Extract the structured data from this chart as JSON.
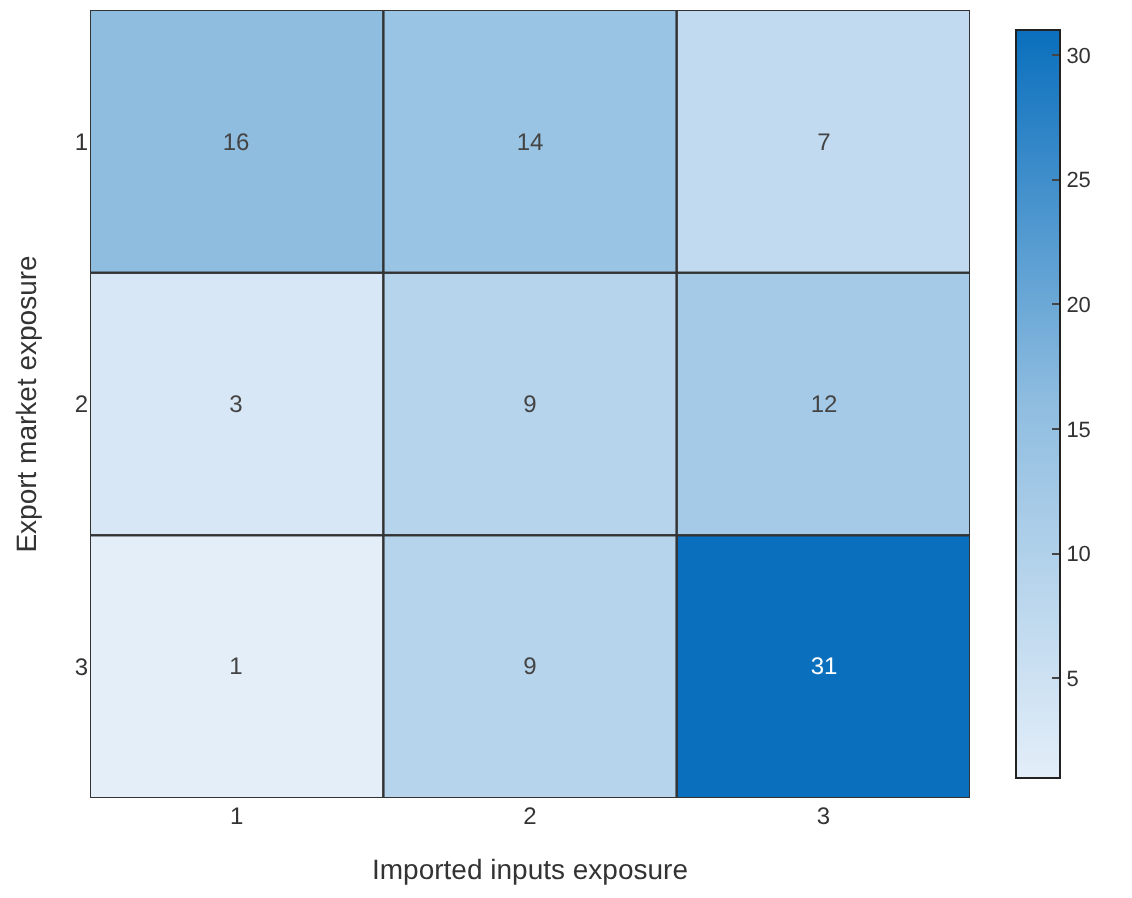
{
  "chart_data": {
    "type": "heatmap",
    "xlabel": "Imported inputs exposure",
    "ylabel": "Export market exposure",
    "categories": [
      "1",
      "2",
      "3"
    ],
    "y_categories": [
      "1",
      "2",
      "3"
    ],
    "cells": [
      [
        16,
        14,
        7
      ],
      [
        3,
        9,
        12
      ],
      [
        1,
        9,
        31
      ]
    ],
    "data_labels": true,
    "clim": [
      1,
      31
    ],
    "cticks": [
      5,
      10,
      15,
      20,
      25,
      30
    ]
  }
}
